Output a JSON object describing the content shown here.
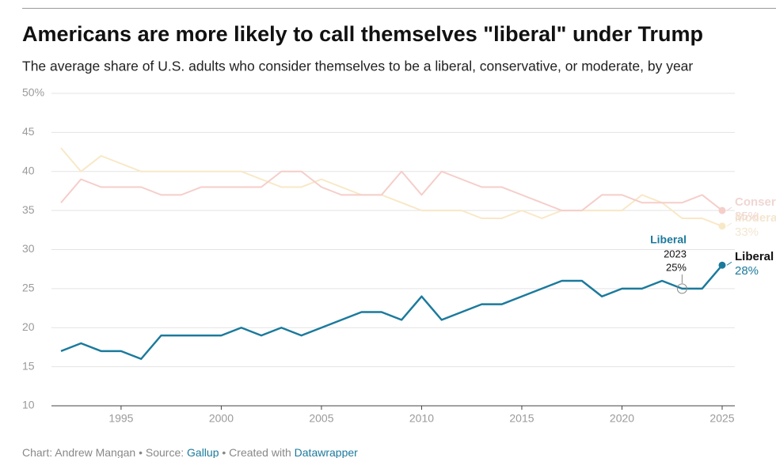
{
  "chart_data": {
    "type": "line",
    "title": "Americans are more likely to call themselves \"liberal\" under Trump",
    "subtitle": "The average share of U.S. adults who consider themselves to be a liberal, conservative, or moderate, by year",
    "x": [
      1992,
      1993,
      1994,
      1995,
      1996,
      1997,
      1998,
      1999,
      2000,
      2001,
      2002,
      2003,
      2004,
      2005,
      2006,
      2007,
      2008,
      2009,
      2010,
      2011,
      2012,
      2013,
      2014,
      2015,
      2016,
      2017,
      2018,
      2019,
      2020,
      2021,
      2022,
      2023,
      2024,
      2025
    ],
    "series": [
      {
        "name": "Liberal",
        "color": "#1b7a9c",
        "label_color": "#111111",
        "values": [
          17,
          18,
          17,
          17,
          16,
          19,
          19,
          19,
          19,
          20,
          19,
          20,
          19,
          20,
          21,
          22,
          22,
          21,
          24,
          21,
          22,
          23,
          23,
          24,
          25,
          26,
          26,
          24,
          25,
          25,
          26,
          25,
          25,
          28
        ],
        "value_labels": [
          null,
          null,
          null,
          null,
          null,
          null,
          null,
          null,
          null,
          null,
          null,
          null,
          null,
          null,
          null,
          null,
          null,
          null,
          null,
          null,
          null,
          null,
          null,
          null,
          null,
          null,
          null,
          null,
          null,
          null,
          null,
          null,
          null,
          "28%"
        ]
      },
      {
        "name": "Conservative",
        "color": "#f5cdc9",
        "label_color": "#f0d6d3",
        "values": [
          36,
          39,
          38,
          38,
          38,
          37,
          37,
          38,
          38,
          38,
          38,
          40,
          40,
          38,
          37,
          37,
          37,
          40,
          37,
          40,
          39,
          38,
          38,
          37,
          36,
          35,
          35,
          37,
          37,
          36,
          36,
          36,
          37,
          35
        ],
        "value_labels": [
          null,
          null,
          null,
          null,
          null,
          null,
          null,
          null,
          null,
          null,
          null,
          null,
          null,
          null,
          null,
          null,
          null,
          null,
          null,
          null,
          null,
          null,
          null,
          null,
          null,
          null,
          null,
          null,
          null,
          null,
          null,
          null,
          null,
          "35%"
        ]
      },
      {
        "name": "Moderate",
        "color": "#f8e8c6",
        "label_color": "#f3e6cf",
        "values": [
          43,
          40,
          42,
          41,
          40,
          40,
          40,
          40,
          40,
          40,
          39,
          38,
          38,
          39,
          38,
          37,
          37,
          36,
          35,
          35,
          35,
          34,
          34,
          35,
          34,
          35,
          35,
          35,
          35,
          37,
          36,
          34,
          34,
          33
        ],
        "value_labels": [
          null,
          null,
          null,
          null,
          null,
          null,
          null,
          null,
          null,
          null,
          null,
          null,
          null,
          null,
          null,
          null,
          null,
          null,
          null,
          null,
          null,
          null,
          null,
          null,
          null,
          null,
          null,
          null,
          null,
          null,
          null,
          null,
          null,
          "33%"
        ]
      }
    ],
    "annotation": {
      "name": "Liberal",
      "year": 2023,
      "value_label": "25%"
    },
    "xlim": [
      1992,
      2025
    ],
    "xticks": [
      1995,
      2000,
      2005,
      2010,
      2015,
      2020,
      2025
    ],
    "ylim": [
      10,
      50
    ],
    "yticks": [
      10,
      15,
      20,
      25,
      30,
      35,
      40,
      45,
      {
        "value": 50,
        "label": "50%"
      }
    ],
    "grid": true,
    "credit": {
      "prefix": "Chart: Andrew Mangan • Source: ",
      "source": "Gallup",
      "middle": " • Created with ",
      "tool": "Datawrapper"
    }
  }
}
